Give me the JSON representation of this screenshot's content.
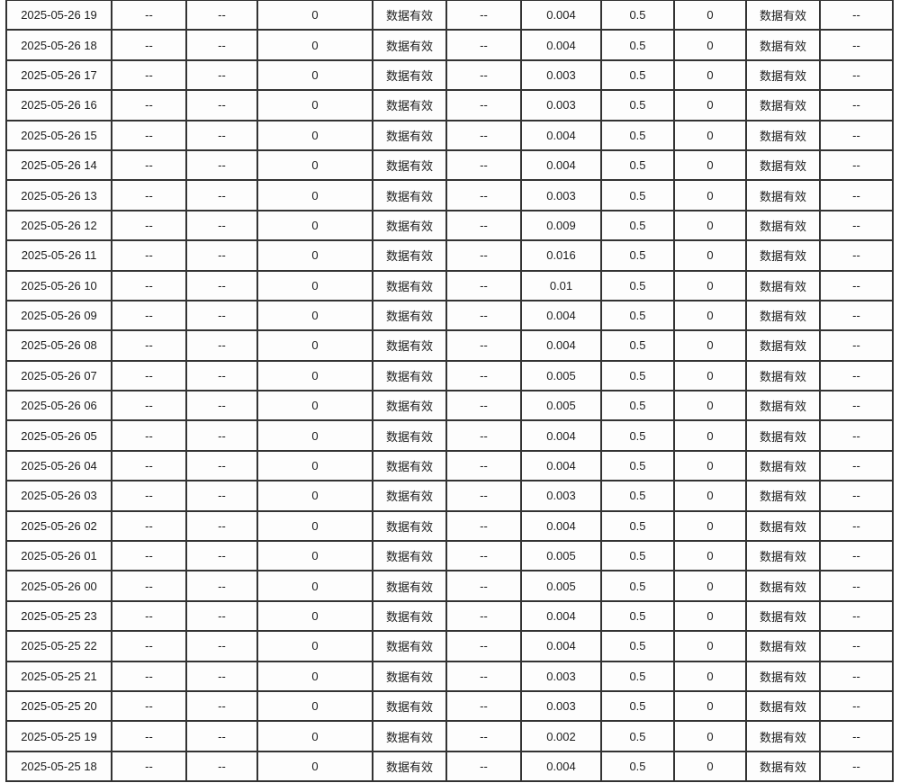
{
  "page": {
    "background_color": "#ffffff"
  },
  "table": {
    "border_color": "#333333",
    "cell_background": "#fdfdfd",
    "text_color": "#1c1c1c",
    "status_valid_label": "数据有效",
    "no_data_label": "--",
    "rows": [
      [
        "2025-05-26 19",
        "--",
        "--",
        "0",
        "数据有效",
        "--",
        "0.004",
        "0.5",
        "0",
        "数据有效",
        "--"
      ],
      [
        "2025-05-26 18",
        "--",
        "--",
        "0",
        "数据有效",
        "--",
        "0.004",
        "0.5",
        "0",
        "数据有效",
        "--"
      ],
      [
        "2025-05-26 17",
        "--",
        "--",
        "0",
        "数据有效",
        "--",
        "0.003",
        "0.5",
        "0",
        "数据有效",
        "--"
      ],
      [
        "2025-05-26 16",
        "--",
        "--",
        "0",
        "数据有效",
        "--",
        "0.003",
        "0.5",
        "0",
        "数据有效",
        "--"
      ],
      [
        "2025-05-26 15",
        "--",
        "--",
        "0",
        "数据有效",
        "--",
        "0.004",
        "0.5",
        "0",
        "数据有效",
        "--"
      ],
      [
        "2025-05-26 14",
        "--",
        "--",
        "0",
        "数据有效",
        "--",
        "0.004",
        "0.5",
        "0",
        "数据有效",
        "--"
      ],
      [
        "2025-05-26 13",
        "--",
        "--",
        "0",
        "数据有效",
        "--",
        "0.003",
        "0.5",
        "0",
        "数据有效",
        "--"
      ],
      [
        "2025-05-26 12",
        "--",
        "--",
        "0",
        "数据有效",
        "--",
        "0.009",
        "0.5",
        "0",
        "数据有效",
        "--"
      ],
      [
        "2025-05-26 11",
        "--",
        "--",
        "0",
        "数据有效",
        "--",
        "0.016",
        "0.5",
        "0",
        "数据有效",
        "--"
      ],
      [
        "2025-05-26 10",
        "--",
        "--",
        "0",
        "数据有效",
        "--",
        "0.01",
        "0.5",
        "0",
        "数据有效",
        "--"
      ],
      [
        "2025-05-26 09",
        "--",
        "--",
        "0",
        "数据有效",
        "--",
        "0.004",
        "0.5",
        "0",
        "数据有效",
        "--"
      ],
      [
        "2025-05-26 08",
        "--",
        "--",
        "0",
        "数据有效",
        "--",
        "0.004",
        "0.5",
        "0",
        "数据有效",
        "--"
      ],
      [
        "2025-05-26 07",
        "--",
        "--",
        "0",
        "数据有效",
        "--",
        "0.005",
        "0.5",
        "0",
        "数据有效",
        "--"
      ],
      [
        "2025-05-26 06",
        "--",
        "--",
        "0",
        "数据有效",
        "--",
        "0.005",
        "0.5",
        "0",
        "数据有效",
        "--"
      ],
      [
        "2025-05-26 05",
        "--",
        "--",
        "0",
        "数据有效",
        "--",
        "0.004",
        "0.5",
        "0",
        "数据有效",
        "--"
      ],
      [
        "2025-05-26 04",
        "--",
        "--",
        "0",
        "数据有效",
        "--",
        "0.004",
        "0.5",
        "0",
        "数据有效",
        "--"
      ],
      [
        "2025-05-26 03",
        "--",
        "--",
        "0",
        "数据有效",
        "--",
        "0.003",
        "0.5",
        "0",
        "数据有效",
        "--"
      ],
      [
        "2025-05-26 02",
        "--",
        "--",
        "0",
        "数据有效",
        "--",
        "0.004",
        "0.5",
        "0",
        "数据有效",
        "--"
      ],
      [
        "2025-05-26 01",
        "--",
        "--",
        "0",
        "数据有效",
        "--",
        "0.005",
        "0.5",
        "0",
        "数据有效",
        "--"
      ],
      [
        "2025-05-26 00",
        "--",
        "--",
        "0",
        "数据有效",
        "--",
        "0.005",
        "0.5",
        "0",
        "数据有效",
        "--"
      ],
      [
        "2025-05-25 23",
        "--",
        "--",
        "0",
        "数据有效",
        "--",
        "0.004",
        "0.5",
        "0",
        "数据有效",
        "--"
      ],
      [
        "2025-05-25 22",
        "--",
        "--",
        "0",
        "数据有效",
        "--",
        "0.004",
        "0.5",
        "0",
        "数据有效",
        "--"
      ],
      [
        "2025-05-25 21",
        "--",
        "--",
        "0",
        "数据有效",
        "--",
        "0.003",
        "0.5",
        "0",
        "数据有效",
        "--"
      ],
      [
        "2025-05-25 20",
        "--",
        "--",
        "0",
        "数据有效",
        "--",
        "0.003",
        "0.5",
        "0",
        "数据有效",
        "--"
      ],
      [
        "2025-05-25 19",
        "--",
        "--",
        "0",
        "数据有效",
        "--",
        "0.002",
        "0.5",
        "0",
        "数据有效",
        "--"
      ],
      [
        "2025-05-25 18",
        "--",
        "--",
        "0",
        "数据有效",
        "--",
        "0.004",
        "0.5",
        "0",
        "数据有效",
        "--"
      ]
    ]
  }
}
